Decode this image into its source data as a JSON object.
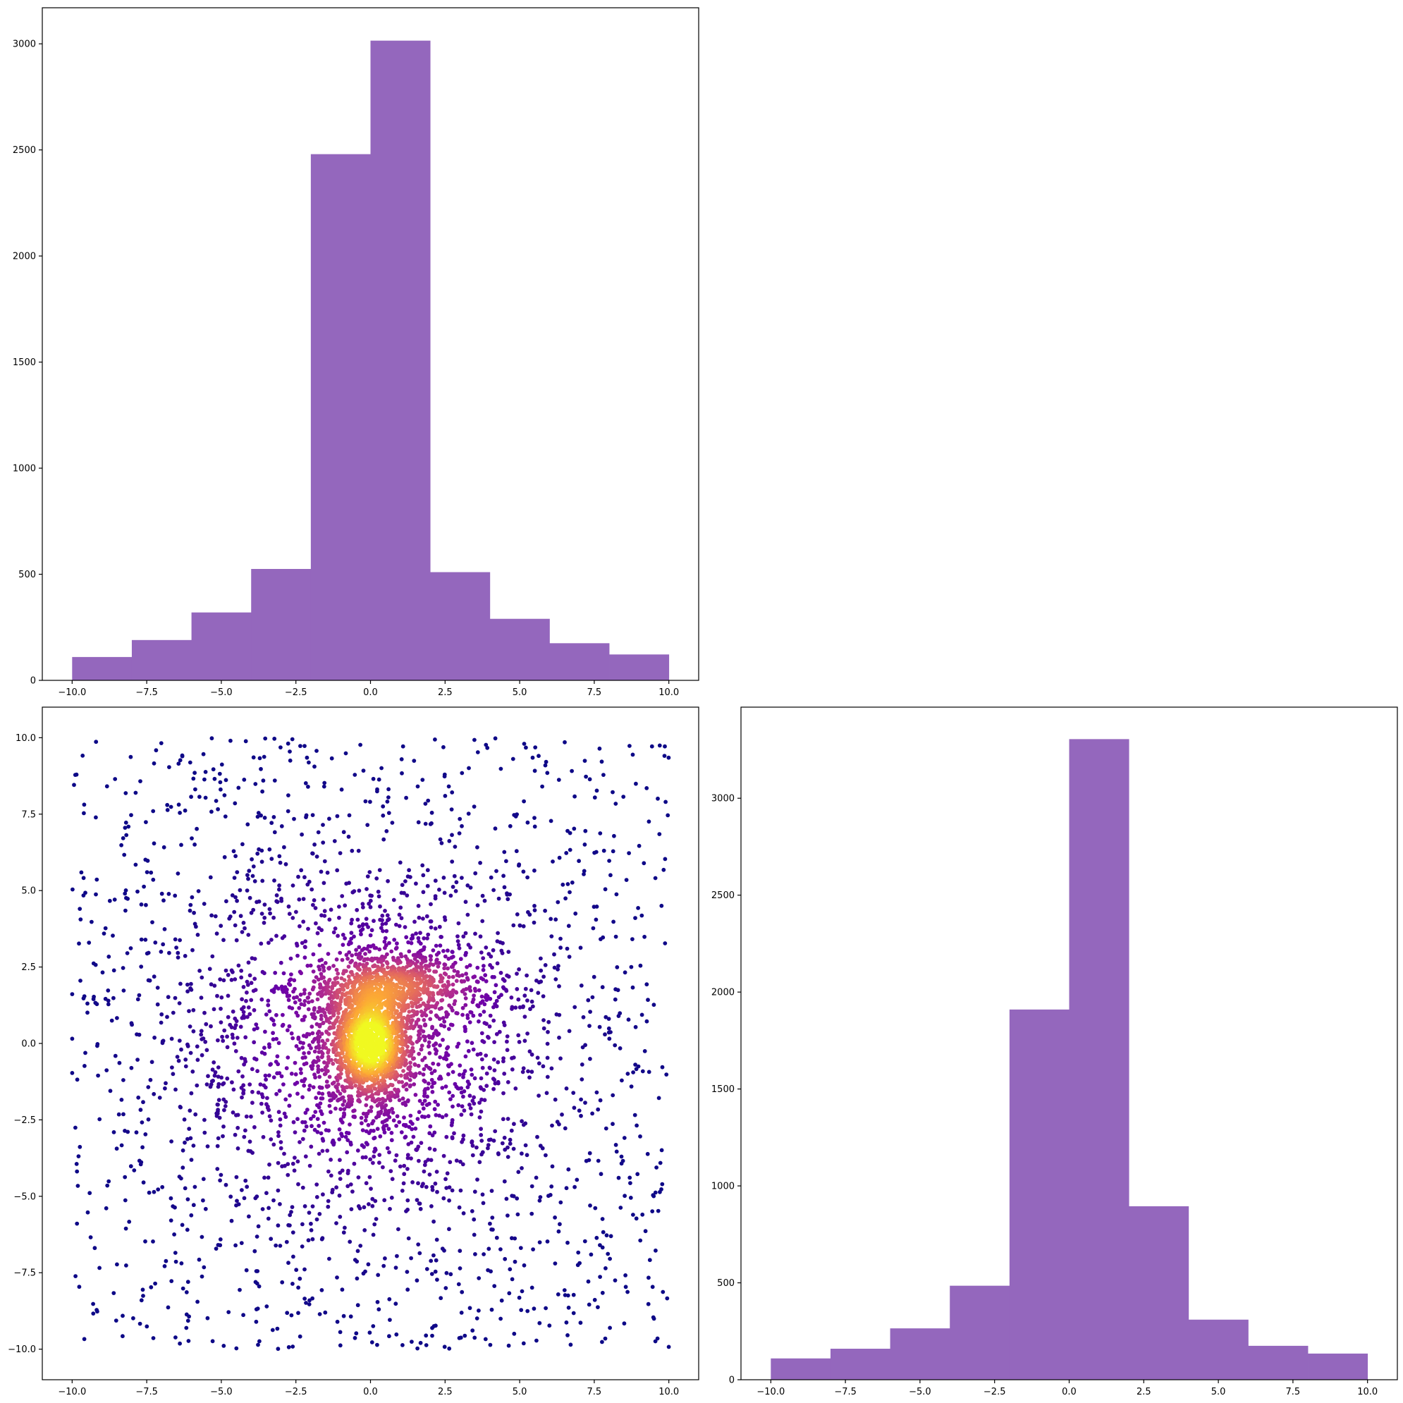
{
  "chart_data": [
    {
      "type": "bar",
      "subtype": "histogram",
      "panel": "top-left",
      "variable": "x",
      "bin_edges": [
        -10,
        -8,
        -6,
        -4,
        -2,
        0,
        2,
        4,
        6,
        8,
        10
      ],
      "values": [
        110,
        190,
        320,
        525,
        2480,
        3015,
        510,
        290,
        175,
        122
      ],
      "color": "#9467bd",
      "xlim": [
        -11,
        11
      ],
      "ylim": [
        0,
        3170
      ],
      "xticks": [
        -10.0,
        -7.5,
        -5.0,
        -2.5,
        0.0,
        2.5,
        5.0,
        7.5,
        10.0
      ],
      "xtick_labels": [
        "−10.0",
        "−7.5",
        "−5.0",
        "−2.5",
        "0.0",
        "2.5",
        "5.0",
        "7.5",
        "10.0"
      ],
      "yticks": [
        0,
        500,
        1000,
        1500,
        2000,
        2500,
        3000
      ],
      "ytick_labels": [
        "0",
        "500",
        "1000",
        "1500",
        "2000",
        "2500",
        "3000"
      ],
      "title": "",
      "xlabel": "",
      "ylabel": ""
    },
    {
      "type": "scatter",
      "panel": "bottom-left",
      "description_of_data": "~5000 points: dense Gaussian cluster at origin plus uniform spread over [-10,10]x[-10,10], colored by local density",
      "colormap": "plasma",
      "density_colors": [
        "#0d0887",
        "#6a00a8",
        "#b12a90",
        "#e16462",
        "#fca636",
        "#f0f921"
      ],
      "xlim": [
        -11,
        11
      ],
      "ylim": [
        -11,
        11
      ],
      "xticks": [
        -10.0,
        -7.5,
        -5.0,
        -2.5,
        0.0,
        2.5,
        5.0,
        7.5,
        10.0
      ],
      "xtick_labels": [
        "−10.0",
        "−7.5",
        "−5.0",
        "−2.5",
        "0.0",
        "2.5",
        "5.0",
        "7.5",
        "10.0"
      ],
      "yticks": [
        -10.0,
        -7.5,
        -5.0,
        -2.5,
        0.0,
        2.5,
        5.0,
        7.5,
        10.0
      ],
      "ytick_labels": [
        "−10.0",
        "−7.5",
        "−5.0",
        "−2.5",
        "0.0",
        "2.5",
        "5.0",
        "7.5",
        "10.0"
      ],
      "title": "",
      "xlabel": "",
      "ylabel": ""
    },
    {
      "type": "bar",
      "subtype": "histogram",
      "panel": "bottom-right",
      "variable": "y",
      "bin_edges": [
        -10,
        -8,
        -6,
        -4,
        -2,
        0,
        2,
        4,
        6,
        8,
        10
      ],
      "values": [
        110,
        160,
        265,
        485,
        1910,
        3305,
        895,
        310,
        175,
        135
      ],
      "color": "#9467bd",
      "xlim": [
        -11,
        11
      ],
      "ylim": [
        0,
        3470
      ],
      "xticks": [
        -10.0,
        -7.5,
        -5.0,
        -2.5,
        0.0,
        2.5,
        5.0,
        7.5,
        10.0
      ],
      "xtick_labels": [
        "−10.0",
        "−7.5",
        "−5.0",
        "−2.5",
        "0.0",
        "2.5",
        "5.0",
        "7.5",
        "10.0"
      ],
      "yticks": [
        0,
        500,
        1000,
        1500,
        2000,
        2500,
        3000
      ],
      "ytick_labels": [
        "0",
        "500",
        "1000",
        "1500",
        "2000",
        "2500",
        "3000"
      ],
      "title": "",
      "xlabel": "",
      "ylabel": ""
    }
  ]
}
